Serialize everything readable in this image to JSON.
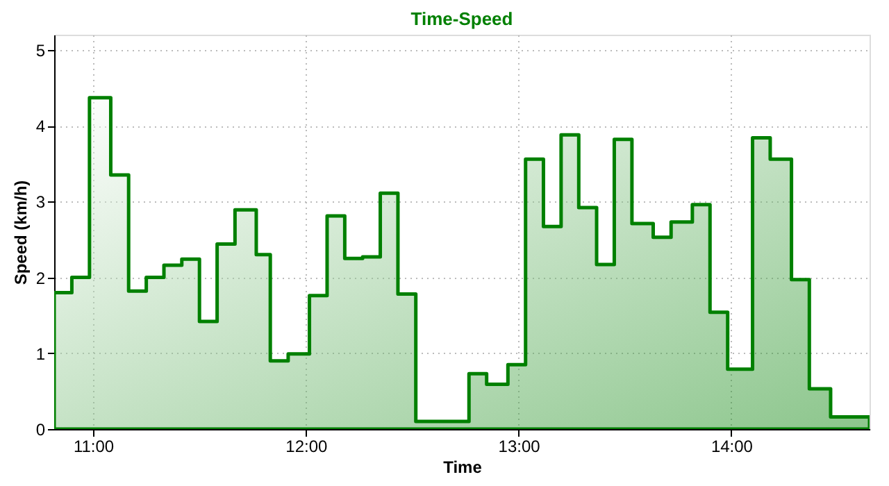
{
  "chart_data": {
    "type": "step",
    "title": "Time-Speed",
    "xlabel": "Time",
    "ylabel": "Speed (km/h)",
    "x": [
      10.817,
      10.9,
      10.983,
      11.083,
      11.167,
      11.25,
      11.333,
      11.417,
      11.5,
      11.583,
      11.667,
      11.767,
      11.833,
      11.917,
      12.017,
      12.1,
      12.183,
      12.267,
      12.35,
      12.433,
      12.517,
      12.767,
      12.85,
      12.95,
      13.033,
      13.117,
      13.2,
      13.283,
      13.367,
      13.45,
      13.533,
      13.633,
      13.717,
      13.817,
      13.9,
      13.983,
      14.1,
      14.183,
      14.283,
      14.367,
      14.467,
      14.65
    ],
    "series": [
      {
        "type": "area",
        "color": "#008000",
        "values": [
          1.8,
          2.0,
          4.37,
          3.35,
          1.82,
          2.0,
          2.16,
          2.24,
          1.42,
          2.44,
          2.89,
          2.3,
          0.9,
          0.99,
          1.76,
          2.81,
          2.25,
          2.27,
          3.11,
          1.78,
          0.1,
          0.73,
          0.59,
          0.85,
          3.56,
          2.67,
          3.88,
          2.92,
          2.17,
          3.82,
          2.71,
          2.53,
          2.73,
          2.96,
          1.54,
          0.79,
          3.84,
          3.56,
          1.97,
          0.53,
          0.16,
          0.16
        ]
      }
    ],
    "xlim": [
      10.817,
      14.65
    ],
    "xticks": [
      {
        "value": 11,
        "label": "11:00"
      },
      {
        "value": 12,
        "label": "12:00"
      },
      {
        "value": 13,
        "label": "13:00"
      },
      {
        "value": 14,
        "label": "14:00"
      }
    ],
    "ylim": [
      0,
      5.2
    ],
    "yticks": [
      0,
      1,
      2,
      3,
      4,
      5
    ],
    "grid": true
  }
}
